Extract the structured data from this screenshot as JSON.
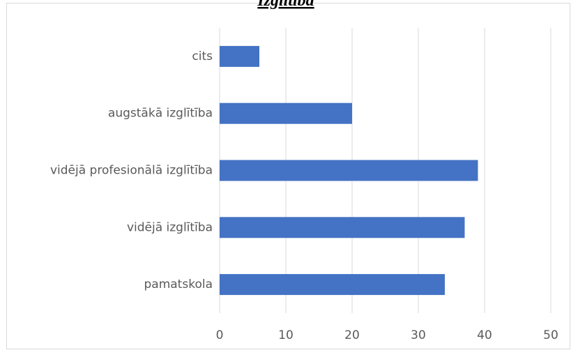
{
  "chart_data": {
    "type": "bar",
    "orientation": "horizontal",
    "title": "Izglītība",
    "categories": [
      "pamatskola",
      "vidējā izglītība",
      "vidējā profesionālā izglītība",
      "augstākā izglītība",
      "cits"
    ],
    "values": [
      34,
      37,
      39,
      20,
      6
    ],
    "color": "#4472c4",
    "xlim": [
      0,
      50
    ],
    "xticks": [
      0,
      10,
      20,
      30,
      40,
      50
    ],
    "grid": true
  }
}
